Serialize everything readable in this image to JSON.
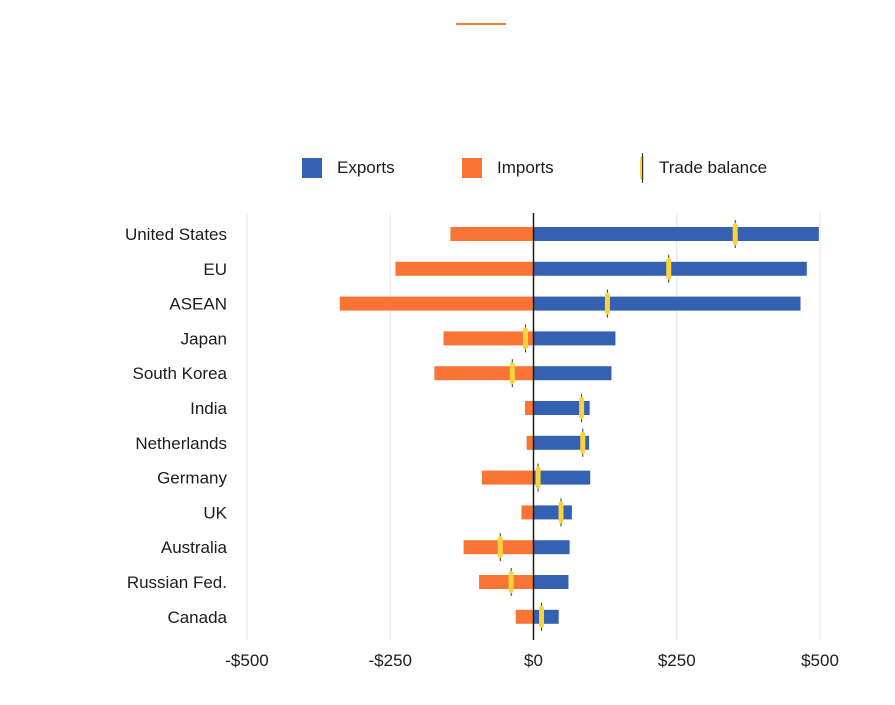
{
  "colors": {
    "exports": "#3461b1",
    "imports": "#fa7436",
    "balance": "#fbd43d",
    "accent": "#f37c3a",
    "grid": "#e6e6e6",
    "axis": "#1a1a1a"
  },
  "legend": {
    "exports": "Exports",
    "imports": "Imports",
    "balance": "Trade balance"
  },
  "chart_data": {
    "type": "bar",
    "orientation": "horizontal",
    "title": "",
    "xlabel": "",
    "ylabel": "",
    "xlim": [
      -500,
      500
    ],
    "xticks": [
      -500,
      -250,
      0,
      250,
      500
    ],
    "xtick_labels": [
      "-$500",
      "-$250",
      "$0",
      "$250",
      "$500"
    ],
    "grid": true,
    "legend_position": "top",
    "categories": [
      "United States",
      "EU",
      "ASEAN",
      "Japan",
      "South Korea",
      "India",
      "Netherlands",
      "Germany",
      "UK",
      "Australia",
      "Russian Fed.",
      "Canada"
    ],
    "series": [
      {
        "name": "Exports",
        "values": [
          498,
          477,
          466,
          143,
          136,
          98,
          97,
          99,
          67,
          63,
          61,
          44
        ]
      },
      {
        "name": "Imports",
        "values": [
          -145,
          -241,
          -338,
          -157,
          -173,
          -15,
          -12,
          -90,
          -21,
          -122,
          -95,
          -31
        ]
      },
      {
        "name": "Trade balance",
        "values": [
          352,
          236,
          129,
          -14,
          -37,
          84,
          86,
          8,
          48,
          -58,
          -39,
          14
        ]
      }
    ]
  }
}
